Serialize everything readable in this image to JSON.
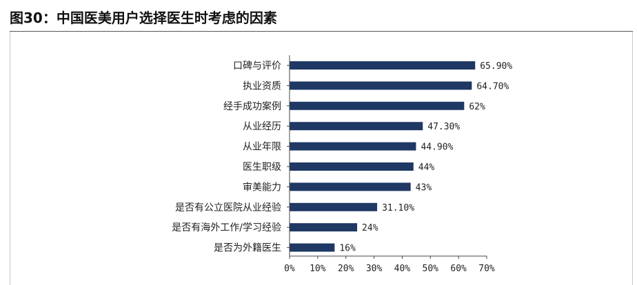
{
  "figure": {
    "title": "图30：中国医美用户选择医生时考虑的因素"
  },
  "chart_data": {
    "type": "bar",
    "orientation": "horizontal",
    "title": "",
    "xlabel": "",
    "ylabel": "",
    "categories": [
      "口碑与评价",
      "执业资质",
      "经手成功案例",
      "从业经历",
      "从业年限",
      "医生职级",
      "审美能力",
      "是否有公立医院从业经验",
      "是否有海外工作/学习经验",
      "是否为外籍医生"
    ],
    "values": [
      65.9,
      64.7,
      62,
      47.3,
      44.9,
      44,
      43,
      31.1,
      24,
      16
    ],
    "value_labels": [
      "65.90%",
      "64.70%",
      "62%",
      "47.30%",
      "44.90%",
      "44%",
      "43%",
      "31.10%",
      "24%",
      "16%"
    ],
    "xlim": [
      0,
      70
    ],
    "x_ticks": [
      0,
      10,
      20,
      30,
      40,
      50,
      60,
      70
    ],
    "x_tick_labels": [
      "0%",
      "10%",
      "20%",
      "30%",
      "40%",
      "50%",
      "60%",
      "70%"
    ],
    "bar_color": "#1f3864",
    "grid": false,
    "legend": "none"
  }
}
